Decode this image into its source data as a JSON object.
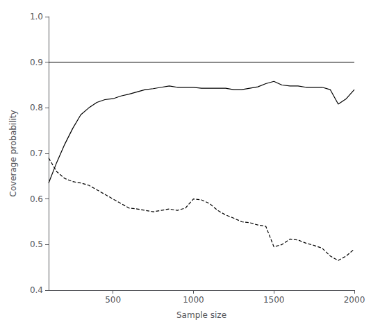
{
  "chart_data": {
    "type": "line",
    "xlabel": "Sample size",
    "ylabel": "Coverage probability",
    "xlim": [
      100,
      2000
    ],
    "ylim": [
      0.4,
      1.0
    ],
    "xticks": [
      500,
      1000,
      1500,
      2000
    ],
    "yticks": [
      0.4,
      0.5,
      0.6,
      0.7,
      0.8,
      0.9,
      {
        "value": 1.0,
        "label": "1.0"
      }
    ],
    "grid": false,
    "hline_y": 0.9,
    "hline_color": "#000000",
    "x": [
      100,
      150,
      200,
      250,
      300,
      350,
      400,
      450,
      500,
      550,
      600,
      650,
      700,
      750,
      800,
      850,
      900,
      950,
      1000,
      1050,
      1100,
      1150,
      1200,
      1250,
      1300,
      1350,
      1400,
      1450,
      1500,
      1550,
      1600,
      1650,
      1700,
      1750,
      1800,
      1850,
      1900,
      1950,
      2000
    ],
    "series": [
      {
        "color": "#000000",
        "line_style": "solid",
        "values": [
          0.635,
          0.68,
          0.72,
          0.755,
          0.785,
          0.8,
          0.812,
          0.818,
          0.82,
          0.826,
          0.83,
          0.835,
          0.84,
          0.842,
          0.845,
          0.848,
          0.845,
          0.845,
          0.845,
          0.843,
          0.843,
          0.843,
          0.843,
          0.84,
          0.84,
          0.843,
          0.846,
          0.853,
          0.858,
          0.85,
          0.848,
          0.848,
          0.845,
          0.845,
          0.845,
          0.84,
          0.808,
          0.82,
          0.84
        ]
      },
      {
        "color": "#000000",
        "line_style": "dashed",
        "values": [
          0.69,
          0.66,
          0.645,
          0.638,
          0.635,
          0.63,
          0.62,
          0.61,
          0.6,
          0.59,
          0.58,
          0.578,
          0.575,
          0.572,
          0.575,
          0.578,
          0.575,
          0.58,
          0.6,
          0.598,
          0.59,
          0.575,
          0.565,
          0.558,
          0.55,
          0.548,
          0.543,
          0.54,
          0.495,
          0.5,
          0.512,
          0.51,
          0.503,
          0.498,
          0.492,
          0.475,
          0.465,
          0.475,
          0.49
        ]
      }
    ]
  }
}
